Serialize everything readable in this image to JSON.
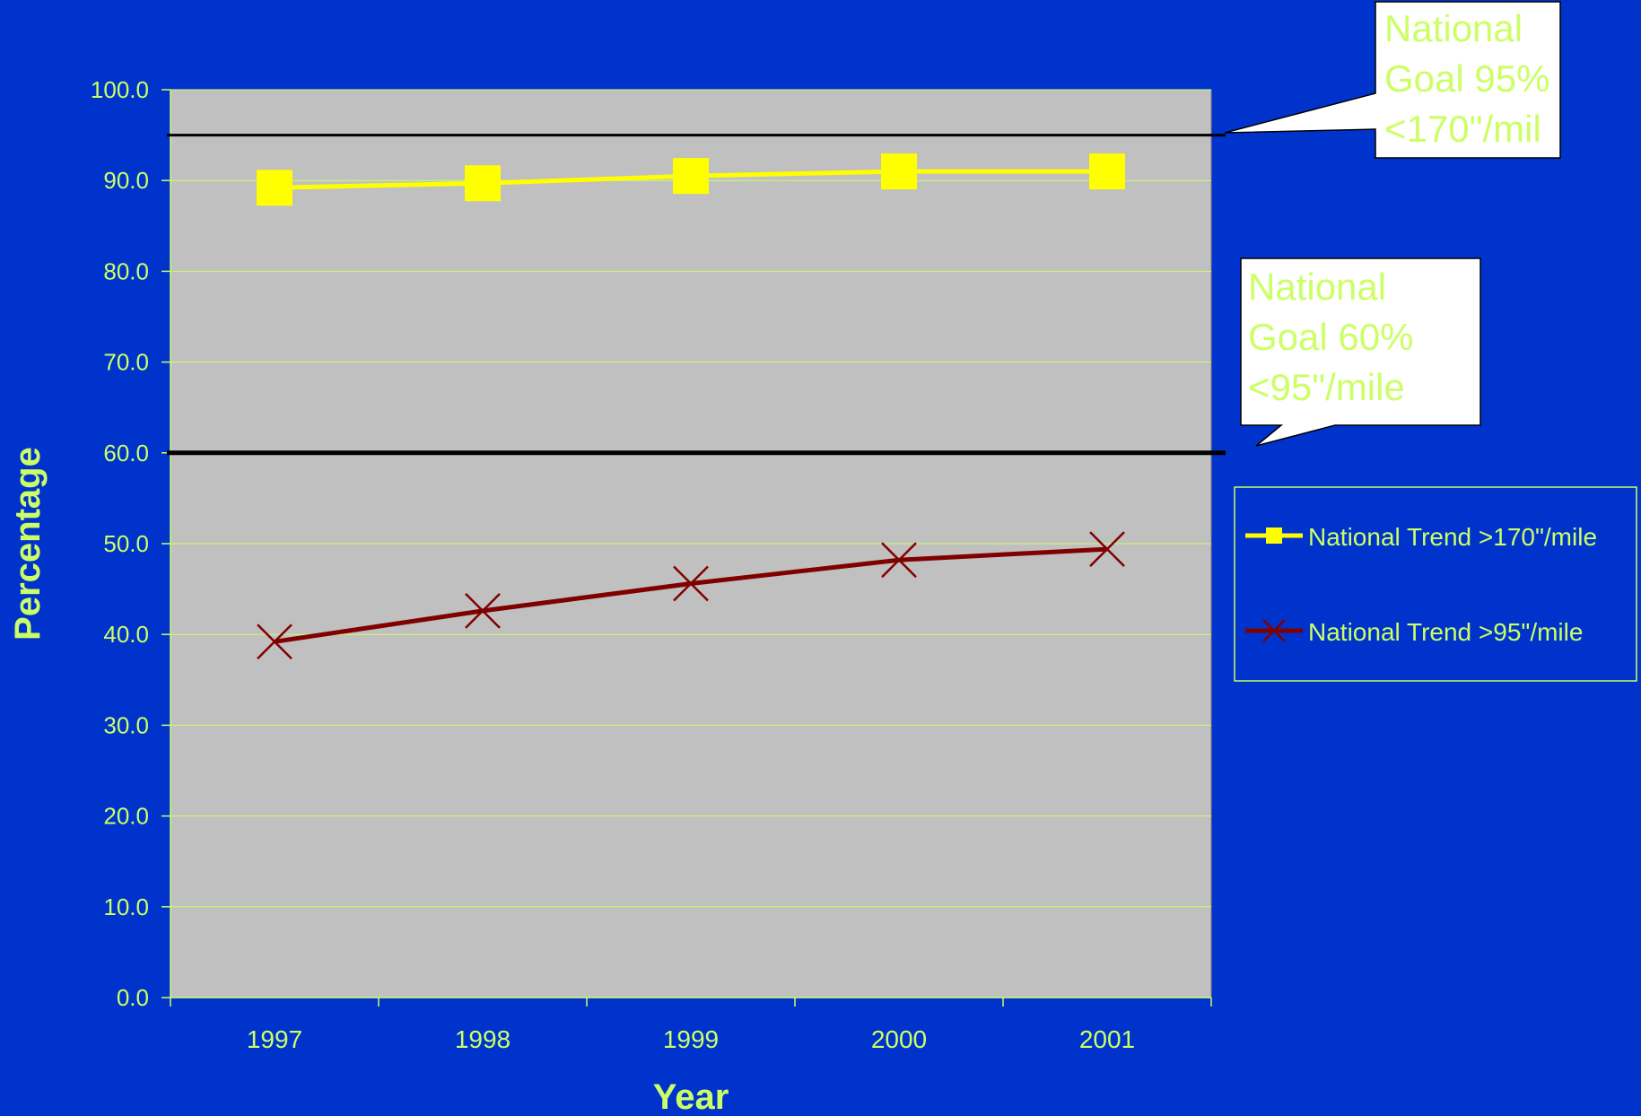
{
  "colors": {
    "background": "#0033cc",
    "plot_area": "#c0c0c0",
    "text": "#ccff66",
    "series_170": "#ffff00",
    "series_95": "#800000",
    "goal_line": "#000000",
    "callout_fill": "#ffffff"
  },
  "callouts": [
    {
      "lines": [
        "National",
        "Goal 95%",
        "<170\"/mil"
      ]
    },
    {
      "lines": [
        "National",
        "Goal 60%",
        "<95\"/mile"
      ]
    }
  ],
  "chart_data": {
    "type": "line",
    "categories": [
      "1997",
      "1998",
      "1999",
      "2000",
      "2001"
    ],
    "series": [
      {
        "name": "National Trend >170\"/mile",
        "values": [
          89.2,
          89.7,
          90.5,
          91.0,
          91.0
        ],
        "marker": "square",
        "color": "#ffff00"
      },
      {
        "name": "National Trend >95\"/mile",
        "values": [
          39.2,
          42.6,
          45.6,
          48.2,
          49.4
        ],
        "marker": "x",
        "color": "#800000"
      }
    ],
    "reference_lines": [
      {
        "value": 95,
        "label": "National Goal 95% <170\"/mil"
      },
      {
        "value": 60,
        "label": "National Goal 60% <95\"/mile"
      }
    ],
    "title": "",
    "xlabel": "Year",
    "ylabel": "Percentage",
    "ylim": [
      0,
      100
    ],
    "yticks": [
      "0.0",
      "10.0",
      "20.0",
      "30.0",
      "40.0",
      "50.0",
      "60.0",
      "70.0",
      "80.0",
      "90.0",
      "100.0"
    ],
    "grid": true,
    "legend_position": "right"
  }
}
